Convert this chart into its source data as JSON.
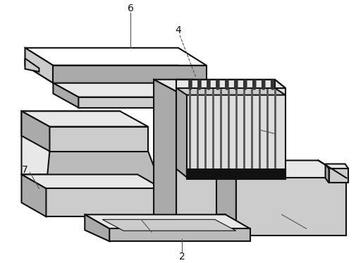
{
  "lc": "#111111",
  "lw": 1.5,
  "white": "#ffffff",
  "light": "#e8e8e8",
  "mid": "#cccccc",
  "dark": "#aaaaaa",
  "vdark": "#888888",
  "black": "#111111",
  "gray_fill": "#d5d5d5",
  "fin_color": "#999999"
}
